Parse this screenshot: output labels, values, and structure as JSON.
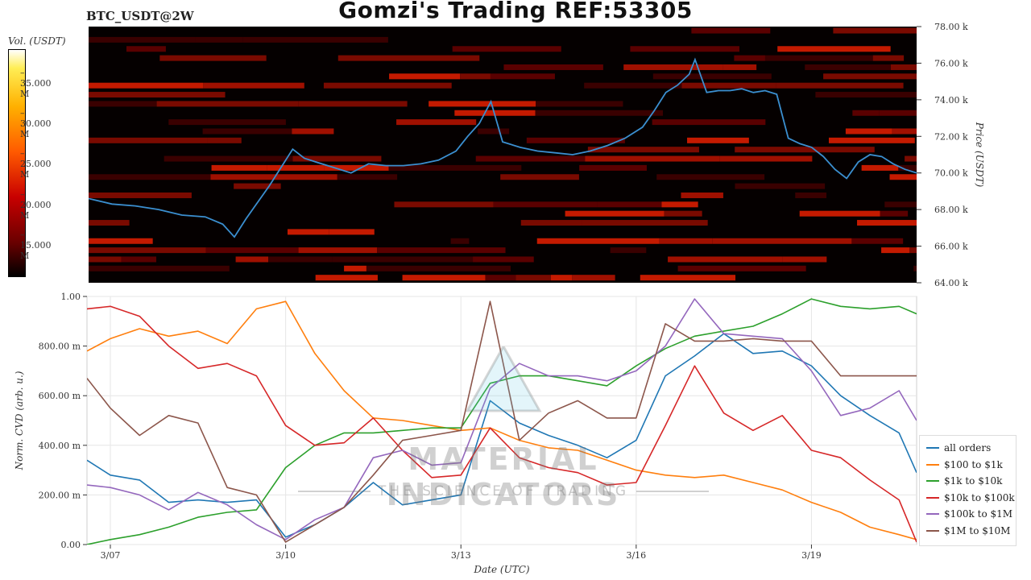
{
  "header": {
    "title": "Gomzi's Trading REF:53305",
    "pair": "BTC_USDT@2W"
  },
  "colorbar": {
    "title": "Vol. (USDT)",
    "ticks": [
      "35.000 M",
      "30.000 M",
      "25.000 M",
      "20.000 M",
      "15.000 M"
    ],
    "tick_values": [
      35,
      30,
      25,
      20,
      15
    ],
    "range": [
      10,
      38
    ]
  },
  "watermark": {
    "name": "MATERIAL INDICATORS",
    "tagline": "THE SCIENCE OF TRADING"
  },
  "chart_data": [
    {
      "type": "heatmap",
      "ylabel": "Price (USDT)",
      "ylim": [
        64000,
        78000
      ],
      "ytick_labels": [
        "64.00 k",
        "66.00 k",
        "68.00 k",
        "70.00 k",
        "72.00 k",
        "74.00 k",
        "76.00 k",
        "78.00 k"
      ],
      "ytick_values": [
        64000,
        66000,
        68000,
        70000,
        72000,
        74000,
        76000,
        78000
      ],
      "xlim": [
        6.6,
        20.8
      ],
      "price_series": {
        "color": "#3b8fd0",
        "t": [
          6.6,
          7.0,
          7.4,
          7.8,
          8.2,
          8.6,
          8.9,
          9.1,
          9.3,
          9.5,
          9.7,
          9.9,
          10.1,
          10.3,
          10.5,
          10.8,
          11.1,
          11.4,
          11.7,
          12.0,
          12.3,
          12.6,
          12.9,
          13.1,
          13.3,
          13.5,
          13.7,
          14.0,
          14.3,
          14.6,
          14.9,
          15.2,
          15.5,
          15.8,
          16.1,
          16.3,
          16.5,
          16.7,
          16.9,
          17.0,
          17.2,
          17.4,
          17.6,
          17.8,
          18.0,
          18.2,
          18.4,
          18.6,
          18.8,
          19.0,
          19.2,
          19.4,
          19.6,
          19.8,
          20.0,
          20.2,
          20.4,
          20.6,
          20.8
        ],
        "v": [
          68600,
          68300,
          68200,
          68000,
          67700,
          67600,
          67200,
          66500,
          67500,
          68400,
          69300,
          70300,
          71300,
          70800,
          70600,
          70300,
          70000,
          70500,
          70400,
          70400,
          70500,
          70700,
          71200,
          72000,
          72700,
          73900,
          71700,
          71400,
          71200,
          71100,
          71000,
          71200,
          71500,
          71900,
          72500,
          73400,
          74400,
          74800,
          75400,
          76200,
          74400,
          74500,
          74500,
          74600,
          74400,
          74500,
          74300,
          71900,
          71600,
          71400,
          70900,
          70200,
          69700,
          70600,
          71000,
          70900,
          70500,
          70200,
          70000
        ]
      }
    },
    {
      "type": "line",
      "xlabel": "Date (UTC)",
      "ylabel": "Norm. CVD (arb. u.)",
      "ylim": [
        0,
        1
      ],
      "xlim": [
        6.6,
        20.8
      ],
      "xtick_labels": [
        "3/07",
        "3/10",
        "3/13",
        "3/16",
        "3/19"
      ],
      "xtick_values": [
        7,
        10,
        13,
        16,
        19
      ],
      "ytick_labels": [
        "0.00",
        "200.00 m",
        "400.00 m",
        "600.00 m",
        "800.00 m",
        "1.00"
      ],
      "ytick_values": [
        0,
        0.2,
        0.4,
        0.6,
        0.8,
        1.0
      ],
      "legend_position": "lower-right",
      "x": [
        6.6,
        7.0,
        7.5,
        8.0,
        8.5,
        9.0,
        9.5,
        10.0,
        10.5,
        11.0,
        11.5,
        12.0,
        12.5,
        13.0,
        13.5,
        14.0,
        14.5,
        15.0,
        15.5,
        16.0,
        16.5,
        17.0,
        17.5,
        18.0,
        18.5,
        19.0,
        19.5,
        20.0,
        20.5,
        20.8
      ],
      "series": [
        {
          "name": "all orders",
          "color": "#1f77b4",
          "values": [
            0.34,
            0.28,
            0.26,
            0.17,
            0.18,
            0.17,
            0.18,
            0.03,
            0.08,
            0.15,
            0.25,
            0.16,
            0.18,
            0.2,
            0.58,
            0.49,
            0.44,
            0.4,
            0.35,
            0.42,
            0.68,
            0.76,
            0.85,
            0.77,
            0.78,
            0.72,
            0.6,
            0.52,
            0.45,
            0.29
          ]
        },
        {
          "name": "$100 to $1k",
          "color": "#ff7f0e",
          "values": [
            0.78,
            0.83,
            0.87,
            0.84,
            0.86,
            0.81,
            0.95,
            0.98,
            0.77,
            0.62,
            0.51,
            0.5,
            0.48,
            0.46,
            0.47,
            0.42,
            0.39,
            0.38,
            0.34,
            0.3,
            0.28,
            0.27,
            0.28,
            0.25,
            0.22,
            0.17,
            0.13,
            0.07,
            0.04,
            0.02
          ]
        },
        {
          "name": "$1k to $10k",
          "color": "#2ca02c",
          "values": [
            0.0,
            0.02,
            0.04,
            0.07,
            0.11,
            0.13,
            0.14,
            0.31,
            0.4,
            0.45,
            0.45,
            0.46,
            0.47,
            0.47,
            0.65,
            0.68,
            0.68,
            0.66,
            0.64,
            0.72,
            0.79,
            0.84,
            0.86,
            0.88,
            0.93,
            0.99,
            0.96,
            0.95,
            0.96,
            0.93
          ]
        },
        {
          "name": "$10k to $100k",
          "color": "#d62728",
          "values": [
            0.95,
            0.96,
            0.92,
            0.8,
            0.71,
            0.73,
            0.68,
            0.48,
            0.4,
            0.41,
            0.51,
            0.38,
            0.27,
            0.28,
            0.47,
            0.35,
            0.31,
            0.29,
            0.24,
            0.25,
            0.48,
            0.72,
            0.53,
            0.46,
            0.52,
            0.38,
            0.35,
            0.26,
            0.18,
            0.01
          ]
        },
        {
          "name": "$100k to $1M",
          "color": "#9467bd",
          "values": [
            0.24,
            0.23,
            0.2,
            0.14,
            0.21,
            0.16,
            0.08,
            0.02,
            0.1,
            0.15,
            0.35,
            0.38,
            0.32,
            0.33,
            0.63,
            0.73,
            0.68,
            0.68,
            0.66,
            0.7,
            0.8,
            0.99,
            0.85,
            0.84,
            0.83,
            0.7,
            0.52,
            0.55,
            0.62,
            0.5
          ]
        },
        {
          "name": "$1M to $10M",
          "color": "#8c564b",
          "values": [
            0.67,
            0.55,
            0.44,
            0.52,
            0.49,
            0.23,
            0.2,
            0.01,
            0.08,
            0.15,
            0.28,
            0.42,
            0.44,
            0.46,
            0.98,
            0.42,
            0.53,
            0.58,
            0.51,
            0.51,
            0.89,
            0.82,
            0.82,
            0.83,
            0.82,
            0.82,
            0.68,
            0.68,
            0.68,
            0.68
          ]
        }
      ]
    }
  ]
}
